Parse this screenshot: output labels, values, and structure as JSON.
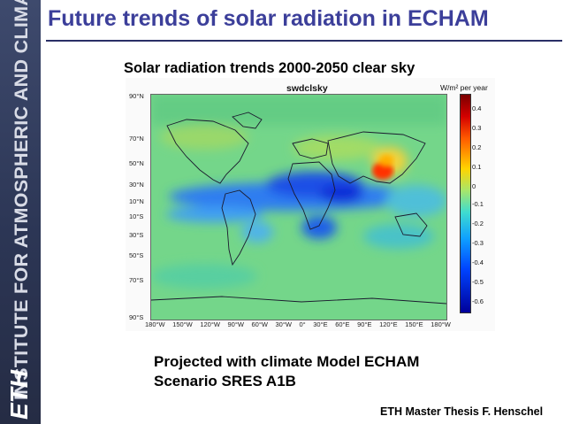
{
  "sidebar": {
    "institute_text": "INSTITUTE FOR ATMOSPHERIC AND CLIMATE SCIENCE",
    "logo_text": "ETH"
  },
  "slide": {
    "title": "Future trends of solar radiation in ECHAM",
    "subtitle": "Solar radiation trends 2000-2050 clear sky",
    "note_line1": "Projected with climate Model ECHAM",
    "note_line2": "Scenario SRES A1B",
    "footer": "ETH Master Thesis F. Henschel"
  },
  "map": {
    "variable_label": "swdclsky",
    "unit_label": "W/m² per year",
    "lat_labels": [
      "90°N",
      "70°N",
      "50°N",
      "30°N",
      "10°N",
      "10°S",
      "30°S",
      "50°S",
      "70°S",
      "90°S"
    ],
    "lon_labels": [
      "180°W",
      "150°W",
      "120°W",
      "90°W",
      "60°W",
      "30°W",
      "0°",
      "30°E",
      "60°E",
      "90°E",
      "120°E",
      "150°E",
      "180°W"
    ],
    "colorbar_ticks": [
      "0.4",
      "0.3",
      "0.2",
      "0.1",
      "0",
      "-0.1",
      "-0.2",
      "-0.3",
      "-0.4",
      "-0.5",
      "-0.6"
    ],
    "colorbar_colors": {
      "max": "#7a0000",
      "high": "#ff5a00",
      "mid_high": "#ffd400",
      "zero": "#a8e66a",
      "mid_low": "#0fa0ff",
      "low": "#0044ff",
      "min": "#00009a"
    }
  }
}
